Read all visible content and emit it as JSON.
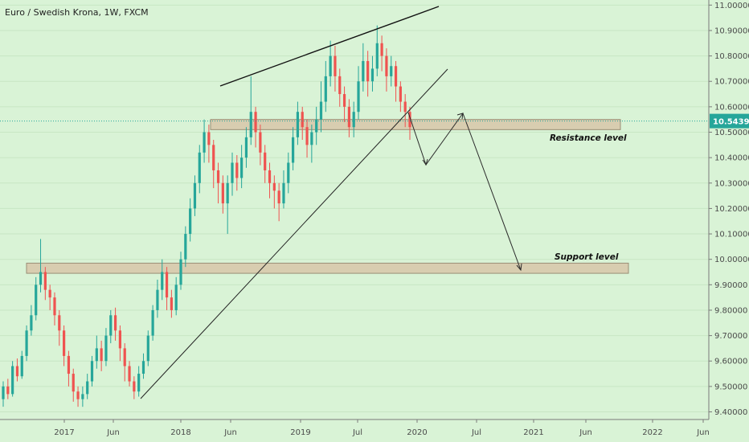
{
  "title": "Euro / Swedish Krona, 1W, FXCM",
  "colors": {
    "background": "#d9f3d6",
    "up": "#26a69a",
    "down": "#ef5350",
    "zone_fill": "#d8cdb0",
    "zone_stroke": "#9a8e76",
    "price_line": "#26a69a",
    "price_label_bg": "#26a69a"
  },
  "chart_data": {
    "type": "candlestick",
    "title": "Euro / Swedish Krona, 1W, FXCM",
    "x_tick_labels": [
      "2017",
      "Jun",
      "2018",
      "Jun",
      "2019",
      "Jul",
      "2020",
      "Jul",
      "2021",
      "Jun",
      "2022",
      "Jun"
    ],
    "y_tick_labels": [
      "9.40000",
      "9.50000",
      "9.60000",
      "9.70000",
      "9.80000",
      "9.90000",
      "10.00000",
      "10.10000",
      "10.20000",
      "10.30000",
      "10.40000",
      "10.50000",
      "10.60000",
      "10.70000",
      "10.80000",
      "10.90000",
      "11.00000"
    ],
    "ylim": [
      9.37,
      11.02
    ],
    "current_price": 10.54396,
    "current_price_label": "10.54396",
    "candles": [
      [
        9.45,
        9.5,
        9.42,
        9.52
      ],
      [
        9.5,
        9.47,
        9.45,
        9.53
      ],
      [
        9.47,
        9.58,
        9.46,
        9.6
      ],
      [
        9.58,
        9.54,
        9.52,
        9.61
      ],
      [
        9.54,
        9.62,
        9.53,
        9.64
      ],
      [
        9.62,
        9.72,
        9.6,
        9.74
      ],
      [
        9.72,
        9.78,
        9.7,
        9.82
      ],
      [
        9.78,
        9.9,
        9.76,
        9.93
      ],
      [
        9.9,
        9.95,
        9.87,
        10.08
      ],
      [
        9.95,
        9.88,
        9.84,
        9.97
      ],
      [
        9.88,
        9.85,
        9.8,
        9.9
      ],
      [
        9.85,
        9.78,
        9.74,
        9.87
      ],
      [
        9.78,
        9.72,
        9.66,
        9.8
      ],
      [
        9.72,
        9.62,
        9.58,
        9.74
      ],
      [
        9.62,
        9.55,
        9.5,
        9.64
      ],
      [
        9.55,
        9.48,
        9.44,
        9.57
      ],
      [
        9.48,
        9.45,
        9.42,
        9.5
      ],
      [
        9.45,
        9.47,
        9.42,
        9.5
      ],
      [
        9.47,
        9.52,
        9.45,
        9.55
      ],
      [
        9.52,
        9.6,
        9.5,
        9.62
      ],
      [
        9.6,
        9.65,
        9.57,
        9.7
      ],
      [
        9.65,
        9.6,
        9.56,
        9.68
      ],
      [
        9.6,
        9.7,
        9.58,
        9.73
      ],
      [
        9.7,
        9.78,
        9.67,
        9.8
      ],
      [
        9.78,
        9.72,
        9.68,
        9.81
      ],
      [
        9.72,
        9.65,
        9.6,
        9.74
      ],
      [
        9.65,
        9.58,
        9.52,
        9.67
      ],
      [
        9.58,
        9.52,
        9.5,
        9.6
      ],
      [
        9.52,
        9.48,
        9.45,
        9.54
      ],
      [
        9.48,
        9.55,
        9.46,
        9.58
      ],
      [
        9.55,
        9.6,
        9.53,
        9.63
      ],
      [
        9.6,
        9.7,
        9.58,
        9.72
      ],
      [
        9.7,
        9.8,
        9.68,
        9.82
      ],
      [
        9.8,
        9.88,
        9.77,
        9.92
      ],
      [
        9.88,
        9.95,
        9.84,
        10.0
      ],
      [
        9.95,
        9.85,
        9.8,
        9.97
      ],
      [
        9.85,
        9.8,
        9.77,
        9.88
      ],
      [
        9.8,
        9.9,
        9.78,
        9.93
      ],
      [
        9.9,
        10.0,
        9.88,
        10.03
      ],
      [
        10.0,
        10.1,
        9.97,
        10.13
      ],
      [
        10.1,
        10.2,
        10.07,
        10.24
      ],
      [
        10.2,
        10.3,
        10.17,
        10.33
      ],
      [
        10.3,
        10.42,
        10.26,
        10.45
      ],
      [
        10.42,
        10.5,
        10.38,
        10.55
      ],
      [
        10.5,
        10.45,
        10.38,
        10.53
      ],
      [
        10.45,
        10.35,
        10.28,
        10.47
      ],
      [
        10.35,
        10.3,
        10.22,
        10.38
      ],
      [
        10.3,
        10.22,
        10.18,
        10.33
      ],
      [
        10.22,
        10.3,
        10.1,
        10.33
      ],
      [
        10.3,
        10.38,
        10.25,
        10.42
      ],
      [
        10.38,
        10.32,
        10.27,
        10.41
      ],
      [
        10.32,
        10.4,
        10.28,
        10.45
      ],
      [
        10.4,
        10.48,
        10.36,
        10.52
      ],
      [
        10.48,
        10.58,
        10.45,
        10.72
      ],
      [
        10.58,
        10.5,
        10.44,
        10.6
      ],
      [
        10.5,
        10.42,
        10.37,
        10.53
      ],
      [
        10.42,
        10.35,
        10.3,
        10.45
      ],
      [
        10.35,
        10.3,
        10.24,
        10.38
      ],
      [
        10.3,
        10.27,
        10.2,
        10.33
      ],
      [
        10.27,
        10.22,
        10.15,
        10.3
      ],
      [
        10.22,
        10.3,
        10.2,
        10.35
      ],
      [
        10.3,
        10.38,
        10.26,
        10.42
      ],
      [
        10.38,
        10.48,
        10.35,
        10.52
      ],
      [
        10.48,
        10.58,
        10.45,
        10.62
      ],
      [
        10.58,
        10.52,
        10.47,
        10.6
      ],
      [
        10.52,
        10.45,
        10.4,
        10.55
      ],
      [
        10.45,
        10.5,
        10.38,
        10.53
      ],
      [
        10.5,
        10.55,
        10.45,
        10.6
      ],
      [
        10.55,
        10.62,
        10.5,
        10.7
      ],
      [
        10.62,
        10.72,
        10.58,
        10.78
      ],
      [
        10.72,
        10.8,
        10.68,
        10.86
      ],
      [
        10.8,
        10.72,
        10.66,
        10.84
      ],
      [
        10.72,
        10.65,
        10.6,
        10.75
      ],
      [
        10.65,
        10.6,
        10.54,
        10.68
      ],
      [
        10.6,
        10.52,
        10.48,
        10.63
      ],
      [
        10.52,
        10.58,
        10.48,
        10.62
      ],
      [
        10.58,
        10.7,
        10.55,
        10.76
      ],
      [
        10.7,
        10.78,
        10.66,
        10.85
      ],
      [
        10.78,
        10.7,
        10.64,
        10.82
      ],
      [
        10.7,
        10.75,
        10.66,
        10.8
      ],
      [
        10.75,
        10.85,
        10.72,
        10.92
      ],
      [
        10.85,
        10.8,
        10.74,
        10.88
      ],
      [
        10.8,
        10.72,
        10.66,
        10.83
      ],
      [
        10.72,
        10.76,
        10.68,
        10.8
      ],
      [
        10.76,
        10.68,
        10.62,
        10.78
      ],
      [
        10.68,
        10.62,
        10.58,
        10.7
      ],
      [
        10.62,
        10.58,
        10.52,
        10.65
      ],
      [
        10.58,
        10.52,
        10.47,
        10.6
      ]
    ]
  },
  "annotations": {
    "resistance": {
      "label": "Resistance level",
      "low": 10.51,
      "high": 10.55
    },
    "support": {
      "label": "Support level",
      "low": 9.945,
      "high": 9.985
    }
  }
}
